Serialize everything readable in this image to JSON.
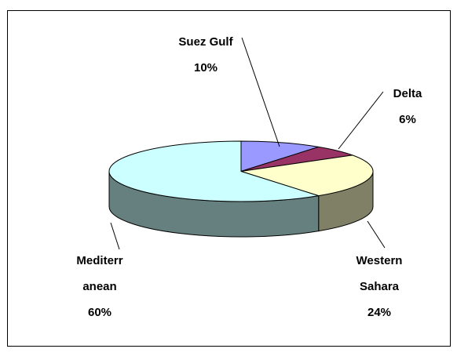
{
  "chart_data": {
    "type": "pie3d",
    "categories": [
      "Suez Gulf",
      "Delta",
      "Western Sahara",
      "Mediterranean"
    ],
    "values": [
      10,
      6,
      24,
      60
    ],
    "value_labels": [
      "10%",
      "6%",
      "24%",
      "60%"
    ],
    "colors": [
      "#9999ff",
      "#993366",
      "#ffffcc",
      "#ccffff"
    ]
  }
}
